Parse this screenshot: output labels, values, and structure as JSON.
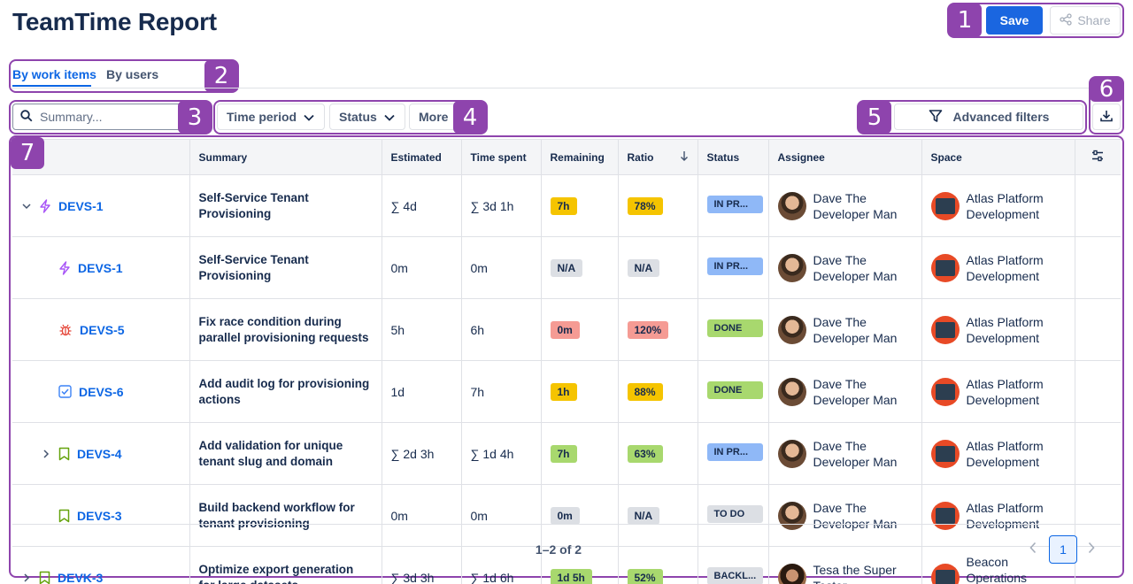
{
  "header": {
    "title": "TeamTime Report",
    "save_label": "Save",
    "share_label": "Share"
  },
  "tabs": [
    {
      "label": "By work items",
      "active": true
    },
    {
      "label": "By users",
      "active": false
    }
  ],
  "toolbar": {
    "search_placeholder": "Summary...",
    "time_period_label": "Time period",
    "status_label": "Status",
    "more_label": "More",
    "advanced_filters_label": "Advanced filters"
  },
  "callouts": [
    "1",
    "2",
    "3",
    "4",
    "5",
    "6",
    "7"
  ],
  "columns": {
    "summary": "Summary",
    "estimated": "Estimated",
    "time_spent": "Time spent",
    "remaining": "Remaining",
    "ratio": "Ratio",
    "status": "Status",
    "assignee": "Assignee",
    "space": "Space"
  },
  "rows": [
    {
      "expander": "down",
      "indent": 0,
      "type_icon": "epic-icon",
      "key": "DEVS-1",
      "summary": "Self-Service Tenant Provisioning",
      "estimated": "∑ 4d",
      "time_spent": "∑ 3d 1h",
      "remaining": "7h",
      "remaining_color": "#f5c400",
      "ratio": "78%",
      "ratio_color": "#f5c400",
      "status": "IN PR...",
      "status_color": "#8fb8f7",
      "assignee": "Dave The Developer Man",
      "avatar": "dave",
      "space": "Atlas Platform Development"
    },
    {
      "expander": "none",
      "indent": 1,
      "type_icon": "epic-icon",
      "key": "DEVS-1",
      "summary": "Self-Service Tenant Provisioning",
      "estimated": "0m",
      "time_spent": "0m",
      "remaining": "N/A",
      "remaining_color": "#dcdfe4",
      "ratio": "N/A",
      "ratio_color": "#dcdfe4",
      "status": "IN PR...",
      "status_color": "#8fb8f7",
      "assignee": "Dave The Developer Man",
      "avatar": "dave",
      "space": "Atlas Platform Development"
    },
    {
      "expander": "none",
      "indent": 1,
      "type_icon": "bug-icon",
      "key": "DEVS-5",
      "summary": "Fix race condition during parallel provisioning requests",
      "estimated": "5h",
      "time_spent": "6h",
      "remaining": "0m",
      "remaining_color": "#f59b94",
      "ratio": "120%",
      "ratio_color": "#f59b94",
      "status": "DONE",
      "status_color": "#a8d86e",
      "assignee": "Dave The Developer Man",
      "avatar": "dave",
      "space": "Atlas Platform Development"
    },
    {
      "expander": "none",
      "indent": 1,
      "type_icon": "task-icon",
      "key": "DEVS-6",
      "summary": "Add audit log for provisioning actions",
      "estimated": "1d",
      "time_spent": "7h",
      "remaining": "1h",
      "remaining_color": "#f5c400",
      "ratio": "88%",
      "ratio_color": "#f5c400",
      "status": "DONE",
      "status_color": "#a8d86e",
      "assignee": "Dave The Developer Man",
      "avatar": "dave",
      "space": "Atlas Platform Development"
    },
    {
      "expander": "right",
      "indent": 1,
      "type_icon": "story-icon",
      "key": "DEVS-4",
      "summary": "Add validation for unique tenant slug and domain",
      "estimated": "∑ 2d 3h",
      "time_spent": "∑ 1d 4h",
      "remaining": "7h",
      "remaining_color": "#a8d86e",
      "ratio": "63%",
      "ratio_color": "#a8d86e",
      "status": "IN PR...",
      "status_color": "#8fb8f7",
      "assignee": "Dave The Developer Man",
      "avatar": "dave",
      "space": "Atlas Platform Development"
    },
    {
      "expander": "none",
      "indent": 1,
      "type_icon": "story-icon",
      "key": "DEVS-3",
      "summary": "Build backend workflow for tenant provisioning",
      "estimated": "0m",
      "time_spent": "0m",
      "remaining": "0m",
      "remaining_color": "#dcdfe4",
      "ratio": "N/A",
      "ratio_color": "#dcdfe4",
      "status": "TO DO",
      "status_color": "#dcdfe4",
      "assignee": "Dave The Developer Man",
      "avatar": "dave",
      "space": "Atlas Platform Development"
    },
    {
      "expander": "right",
      "indent": 0,
      "type_icon": "story-icon",
      "key": "DEVK-3",
      "summary": "Optimize export generation for large datasets",
      "estimated": "∑ 3d 3h",
      "time_spent": "∑ 1d 6h",
      "remaining": "1d 5h",
      "remaining_color": "#a8d86e",
      "ratio": "52%",
      "ratio_color": "#a8d86e",
      "status": "BACKL...",
      "status_color": "#dcdfe4",
      "assignee": "Tesa the Super Tester",
      "avatar": "tesa",
      "space": "Beacon Operations Delivery"
    }
  ],
  "pagination": {
    "summary": "1–2 of 2",
    "current_page": "1"
  }
}
